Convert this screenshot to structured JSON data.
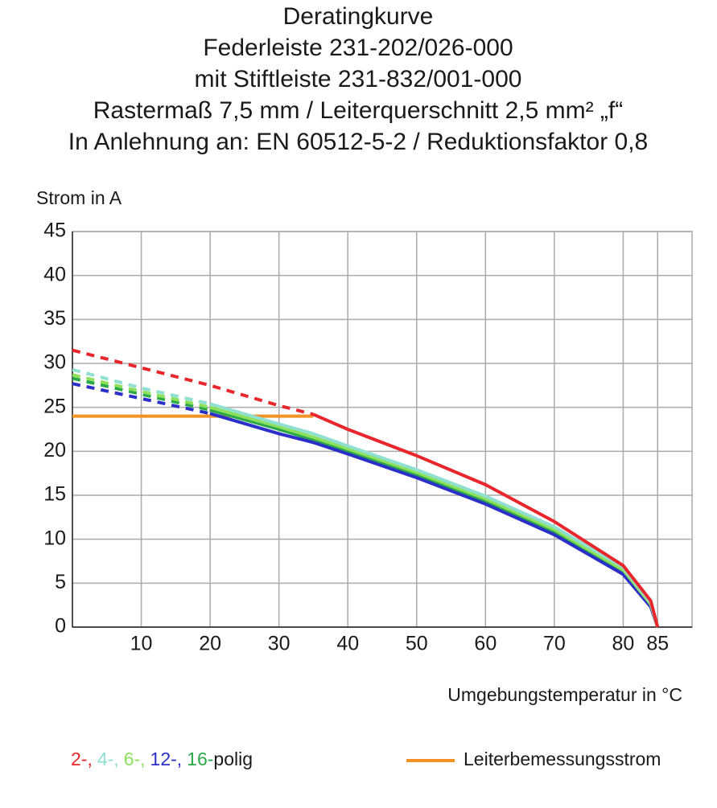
{
  "chart_data": {
    "type": "line",
    "title_lines": [
      "Deratingkurve",
      "Federleiste 231-202/026-000",
      "mit Stiftleiste 231-832/001-000",
      "Rastermaß 7,5 mm / Leiterquerschnitt 2,5 mm² „f“",
      "In Anlehnung an: EN 60512-5-2 / Reduktionsfaktor 0,8"
    ],
    "y_label": "Strom in A",
    "x_label": "Umgebungstemperatur in °C",
    "xlim": [
      0,
      90
    ],
    "xticks": [
      10,
      20,
      30,
      40,
      50,
      60,
      70,
      80,
      85
    ],
    "ylim": [
      0,
      45
    ],
    "yticks": [
      0,
      5,
      10,
      15,
      20,
      25,
      30,
      35,
      40,
      45
    ],
    "grid": true,
    "x": [
      0,
      10,
      20,
      30,
      35,
      40,
      50,
      60,
      70,
      80,
      84,
      85
    ],
    "series": [
      {
        "name": "2-,",
        "color": "#e8262b",
        "solid_from": 35,
        "values": [
          31.5,
          29.5,
          27.5,
          25.2,
          24.2,
          22.5,
          19.5,
          16.2,
          12,
          7,
          3,
          0
        ]
      },
      {
        "name": "4-,",
        "color": "#8fe0d0",
        "solid_from": 20,
        "values": [
          29.3,
          27.2,
          25.4,
          23.1,
          22,
          20.6,
          17.9,
          14.9,
          11.4,
          6.8,
          2.8,
          0
        ]
      },
      {
        "name": "6-,",
        "color": "#8de05a",
        "solid_from": 20,
        "values": [
          28.7,
          26.8,
          25.0,
          22.8,
          21.6,
          20.3,
          17.6,
          14.6,
          11.1,
          6.5,
          2.6,
          0
        ]
      },
      {
        "name": "12-,",
        "color": "#2b2fc8",
        "solid_from": 20,
        "values": [
          27.7,
          26.0,
          24.3,
          22.0,
          21.0,
          19.7,
          17.0,
          14.0,
          10.5,
          6.0,
          2.3,
          0
        ]
      },
      {
        "name": "16-",
        "color": "#2aa84a",
        "solid_from": 20,
        "values": [
          28.3,
          26.5,
          24.7,
          22.5,
          21.3,
          20.0,
          17.3,
          14.3,
          10.8,
          6.3,
          2.5,
          0
        ]
      }
    ],
    "legend_suffix": "polig",
    "rated_current": {
      "name": "Leiterbemessungsstrom",
      "color": "#f39325",
      "x": [
        0,
        35
      ],
      "values": [
        24,
        24
      ]
    }
  }
}
